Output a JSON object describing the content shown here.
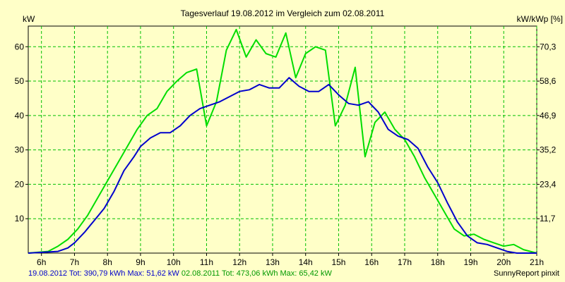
{
  "chart_data": {
    "type": "line",
    "title": "Tagesverlauf 19.08.2012 im Vergleich zum 02.08.2011",
    "ylabel_left": "kW",
    "ylabel_right": "kW/kWp [%]",
    "x_ticks": [
      "6h",
      "7h",
      "8h",
      "9h",
      "10h",
      "11h",
      "12h",
      "13h",
      "14h",
      "15h",
      "16h",
      "17h",
      "18h",
      "19h",
      "20h",
      "21h"
    ],
    "y_ticks_left": [
      "10",
      "20",
      "30",
      "40",
      "50",
      "60"
    ],
    "y_ticks_right": [
      "11,7",
      "23,4",
      "35,2",
      "46,9",
      "58,6",
      "70,3"
    ],
    "xlim": [
      5.6,
      21.0
    ],
    "ylim": [
      0,
      66
    ],
    "grid": true,
    "series": [
      {
        "name": "19.08.2012",
        "color": "#0000cc",
        "x": [
          5.6,
          6.5,
          6.8,
          7.0,
          7.3,
          7.6,
          7.9,
          8.2,
          8.5,
          8.8,
          9.0,
          9.3,
          9.6,
          9.9,
          10.2,
          10.5,
          10.8,
          11.1,
          11.4,
          11.7,
          12.0,
          12.3,
          12.6,
          12.9,
          13.2,
          13.5,
          13.8,
          14.1,
          14.4,
          14.7,
          15.0,
          15.3,
          15.6,
          15.9,
          16.2,
          16.5,
          16.8,
          17.1,
          17.4,
          17.7,
          18.0,
          18.3,
          18.6,
          18.9,
          19.2,
          19.5,
          19.8,
          20.1,
          20.4,
          20.7,
          21.0
        ],
        "y": [
          0,
          0.5,
          1.5,
          3,
          6,
          9.5,
          13,
          18,
          24,
          28,
          31,
          33.5,
          35,
          35,
          37,
          40,
          42,
          43,
          44,
          45.5,
          47,
          47.5,
          49,
          48,
          48,
          51,
          48.5,
          47,
          47,
          49,
          46,
          43.5,
          43,
          44,
          41,
          36,
          34,
          33,
          30.5,
          25,
          20.5,
          14.5,
          9,
          5,
          3,
          2.5,
          1.5,
          0.5,
          0,
          0,
          0
        ]
      },
      {
        "name": "02.08.2011",
        "color": "#00dd00",
        "x": [
          5.6,
          6.2,
          6.5,
          6.8,
          7.1,
          7.4,
          7.7,
          8.0,
          8.3,
          8.6,
          8.9,
          9.2,
          9.5,
          9.8,
          10.1,
          10.4,
          10.7,
          11.0,
          11.3,
          11.6,
          11.9,
          12.2,
          12.5,
          12.8,
          13.1,
          13.4,
          13.7,
          14.0,
          14.3,
          14.6,
          14.9,
          15.2,
          15.5,
          15.8,
          16.1,
          16.4,
          16.7,
          17.0,
          17.3,
          17.6,
          17.9,
          18.2,
          18.5,
          18.8,
          19.1,
          19.4,
          19.7,
          20.0,
          20.3,
          20.6,
          21.0
        ],
        "y": [
          0,
          0.5,
          2,
          4,
          7,
          11,
          16,
          21,
          26,
          31,
          36,
          40,
          42,
          47,
          50,
          52.5,
          53.5,
          37,
          44,
          59,
          65,
          57,
          62,
          58,
          57,
          64,
          51,
          58,
          60,
          59,
          37,
          43,
          54,
          28,
          38,
          41,
          36,
          33,
          28,
          22,
          17,
          12,
          7,
          5,
          5.5,
          4,
          3,
          2,
          2.5,
          1,
          0
        ]
      }
    ]
  },
  "footer": {
    "s1_prefix": "19.08.2012 Tot: 390,79 kWh Max: 51,62 kW",
    "s2_prefix": " 02.08.2011 Tot: 473,06 kWh Max: 65,42 kW",
    "credit": "SunnyReport pinxit"
  }
}
